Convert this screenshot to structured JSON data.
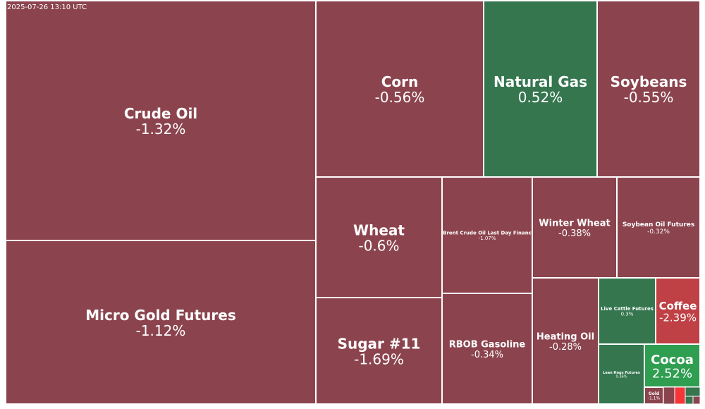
{
  "timestamp": "2025-07-26 13:10 UTC",
  "colors": {
    "negative": "#8b444e",
    "positive": "#35764f",
    "strong_negative": "#bf4045",
    "strong_positive": "#2f9e50",
    "extreme_negative": "#f63538",
    "border": "#ffffff"
  },
  "chart_data": {
    "type": "treemap",
    "title": "",
    "items": [
      {
        "name": "Crude Oil",
        "change": "-1.32%",
        "value": -1.32
      },
      {
        "name": "Micro Gold Futures",
        "change": "-1.12%",
        "value": -1.12
      },
      {
        "name": "Corn",
        "change": "-0.56%",
        "value": -0.56
      },
      {
        "name": "Natural Gas",
        "change": "0.52%",
        "value": 0.52
      },
      {
        "name": "Soybeans",
        "change": "-0.55%",
        "value": -0.55
      },
      {
        "name": "Wheat",
        "change": "-0.6%",
        "value": -0.6
      },
      {
        "name": "Brent Crude Oil Last Day Financ",
        "change": "-1.07%",
        "value": -1.07
      },
      {
        "name": "Winter Wheat",
        "change": "-0.38%",
        "value": -0.38
      },
      {
        "name": "Soybean Oil Futures",
        "change": "-0.32%",
        "value": -0.32
      },
      {
        "name": "Sugar #11",
        "change": "-1.69%",
        "value": -1.69
      },
      {
        "name": "RBOB Gasoline",
        "change": "-0.34%",
        "value": -0.34
      },
      {
        "name": "Heating Oil",
        "change": "-0.28%",
        "value": -0.28
      },
      {
        "name": "Live Cattle Futures",
        "change": "0.3%",
        "value": 0.3
      },
      {
        "name": "Coffee",
        "change": "-2.39%",
        "value": -2.39
      },
      {
        "name": "Lean Hogs Futures",
        "change": "0.36%",
        "value": 0.36
      },
      {
        "name": "Cocoa",
        "change": "2.52%",
        "value": 2.52
      },
      {
        "name": "Gold",
        "change": "-1.1%",
        "value": -1.1
      }
    ]
  }
}
